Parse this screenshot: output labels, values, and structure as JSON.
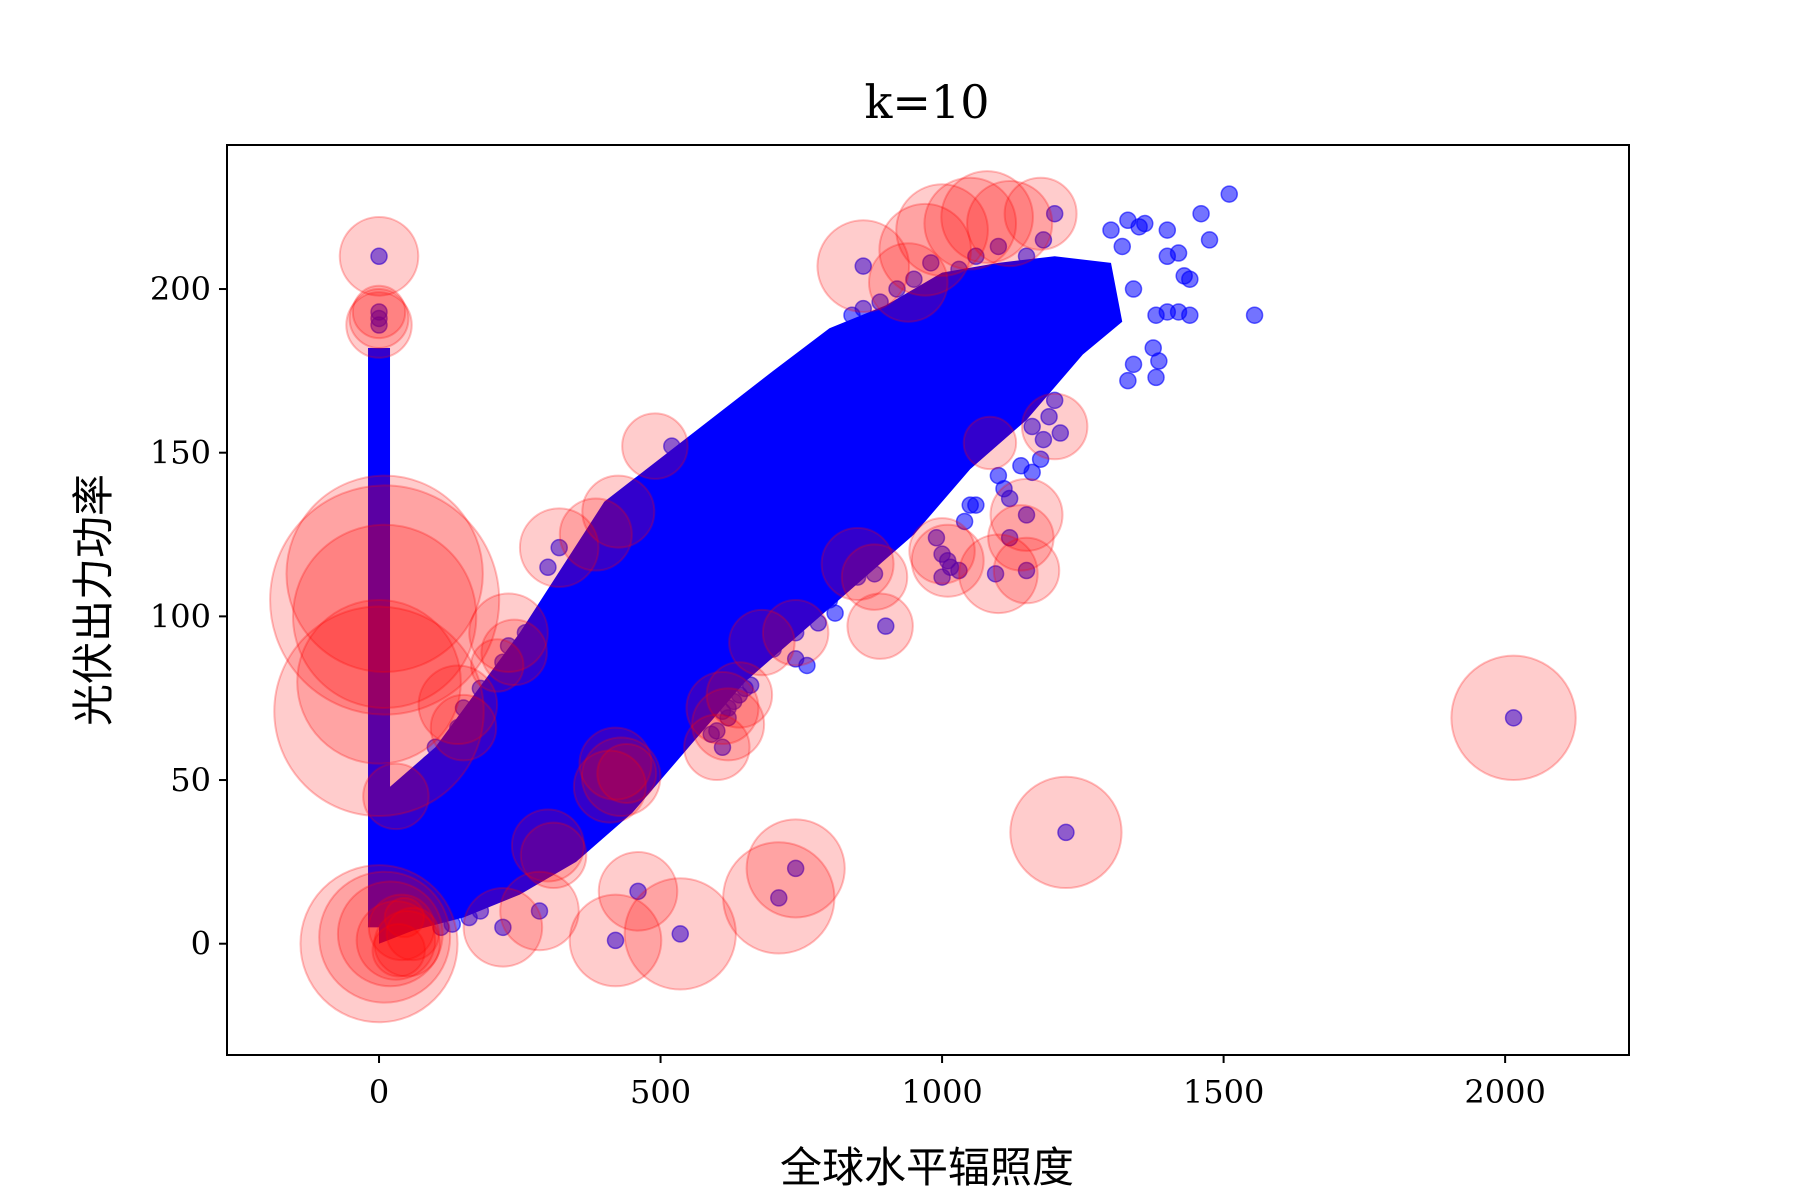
{
  "chart_data": {
    "type": "scatter",
    "title": "k=10",
    "xlabel": "全球水平辐照度",
    "ylabel": "光伏出力功率",
    "xlim": [
      -270,
      2220
    ],
    "ylim": [
      -34,
      244
    ],
    "xticks": [
      0,
      500,
      1000,
      1500,
      2000
    ],
    "yticks": [
      0,
      50,
      100,
      150,
      200
    ],
    "grid": false,
    "legend": "none",
    "colors": {
      "points": "#0000ff",
      "outlier_circles": "#ff0000"
    },
    "bands": [
      {
        "name": "dense-cluster",
        "polygon": [
          [
            0,
            0
          ],
          [
            0,
            45
          ],
          [
            100,
            60
          ],
          [
            250,
            95
          ],
          [
            400,
            135
          ],
          [
            550,
            155
          ],
          [
            700,
            175
          ],
          [
            800,
            188
          ],
          [
            900,
            195
          ],
          [
            1000,
            205
          ],
          [
            1100,
            208
          ],
          [
            1200,
            210
          ],
          [
            1300,
            208
          ],
          [
            1320,
            190
          ],
          [
            1250,
            180
          ],
          [
            1150,
            160
          ],
          [
            1050,
            145
          ],
          [
            950,
            125
          ],
          [
            850,
            110
          ],
          [
            750,
            95
          ],
          [
            650,
            80
          ],
          [
            550,
            60
          ],
          [
            450,
            40
          ],
          [
            350,
            25
          ],
          [
            250,
            15
          ],
          [
            150,
            8
          ],
          [
            60,
            4
          ]
        ]
      },
      {
        "name": "zero-irradiance-bar",
        "x": 0,
        "y_range": [
          5,
          182
        ]
      }
    ],
    "points": [
      [
        1510,
        229
      ],
      [
        1460,
        223
      ],
      [
        1475,
        215
      ],
      [
        1400,
        218
      ],
      [
        1420,
        211
      ],
      [
        1430,
        204
      ],
      [
        1440,
        203
      ],
      [
        1420,
        193
      ],
      [
        1400,
        193
      ],
      [
        1440,
        192
      ],
      [
        1380,
        192
      ],
      [
        1555,
        192
      ],
      [
        1375,
        182
      ],
      [
        1385,
        178
      ],
      [
        1340,
        177
      ],
      [
        1380,
        173
      ],
      [
        1330,
        172
      ],
      [
        1360,
        220
      ],
      [
        1330,
        221
      ],
      [
        1350,
        219
      ],
      [
        1300,
        218
      ],
      [
        1320,
        213
      ],
      [
        1400,
        210
      ],
      [
        1340,
        200
      ],
      [
        1225,
        196
      ],
      [
        1210,
        183
      ],
      [
        1195,
        176
      ],
      [
        1200,
        166
      ],
      [
        1190,
        161
      ],
      [
        1210,
        156
      ],
      [
        1160,
        158
      ],
      [
        1180,
        154
      ],
      [
        1175,
        148
      ],
      [
        1140,
        146
      ],
      [
        1100,
        143
      ],
      [
        1160,
        144
      ],
      [
        1110,
        139
      ],
      [
        1120,
        136
      ],
      [
        1050,
        134
      ],
      [
        1060,
        134
      ],
      [
        1040,
        129
      ],
      [
        990,
        124
      ],
      [
        1150,
        131
      ],
      [
        1120,
        124
      ],
      [
        1000,
        119
      ],
      [
        1010,
        117
      ],
      [
        1015,
        115
      ],
      [
        1030,
        114
      ],
      [
        1095,
        113
      ],
      [
        1150,
        114
      ],
      [
        1000,
        112
      ],
      [
        900,
        97
      ],
      [
        880,
        113
      ],
      [
        850,
        112
      ],
      [
        840,
        118
      ],
      [
        800,
        118
      ],
      [
        830,
        116
      ],
      [
        820,
        111
      ],
      [
        800,
        105
      ],
      [
        810,
        101
      ],
      [
        780,
        98
      ],
      [
        740,
        95
      ],
      [
        700,
        100
      ],
      [
        720,
        95
      ],
      [
        670,
        92
      ],
      [
        740,
        87
      ],
      [
        760,
        85
      ],
      [
        700,
        90
      ],
      [
        660,
        79
      ],
      [
        650,
        78
      ],
      [
        640,
        76
      ],
      [
        630,
        74
      ],
      [
        620,
        72
      ],
      [
        610,
        71
      ],
      [
        620,
        69
      ],
      [
        600,
        65
      ],
      [
        590,
        64
      ],
      [
        610,
        60
      ],
      [
        530,
        61
      ],
      [
        510,
        62
      ],
      [
        0,
        210
      ],
      [
        0,
        193
      ],
      [
        0,
        191
      ],
      [
        0,
        189
      ],
      [
        0,
        113
      ],
      [
        0,
        102
      ],
      [
        0,
        100
      ],
      [
        0,
        80
      ],
      [
        0,
        73
      ],
      [
        0,
        70
      ],
      [
        860,
        207
      ],
      [
        1200,
        223
      ],
      [
        1180,
        215
      ],
      [
        1150,
        210
      ],
      [
        1100,
        213
      ],
      [
        1060,
        210
      ],
      [
        1030,
        206
      ],
      [
        980,
        208
      ],
      [
        950,
        203
      ],
      [
        920,
        200
      ],
      [
        890,
        196
      ],
      [
        860,
        194
      ],
      [
        840,
        192
      ],
      [
        520,
        152
      ],
      [
        415,
        132
      ],
      [
        450,
        125
      ],
      [
        320,
        121
      ],
      [
        300,
        115
      ],
      [
        260,
        95
      ],
      [
        230,
        91
      ],
      [
        220,
        86
      ],
      [
        150,
        72
      ],
      [
        180,
        78
      ],
      [
        140,
        66
      ],
      [
        100,
        60
      ],
      [
        90,
        55
      ],
      [
        70,
        50
      ],
      [
        60,
        47
      ],
      [
        50,
        45
      ],
      [
        400,
        55
      ],
      [
        410,
        52
      ],
      [
        420,
        50
      ],
      [
        430,
        48
      ],
      [
        380,
        45
      ],
      [
        360,
        40
      ],
      [
        340,
        35
      ],
      [
        320,
        33
      ],
      [
        300,
        30
      ],
      [
        280,
        28
      ],
      [
        260,
        25
      ],
      [
        240,
        20
      ],
      [
        220,
        18
      ],
      [
        200,
        15
      ],
      [
        180,
        10
      ],
      [
        160,
        8
      ],
      [
        130,
        6
      ],
      [
        110,
        5
      ],
      [
        285,
        10
      ],
      [
        220,
        5
      ],
      [
        460,
        16
      ],
      [
        420,
        1
      ],
      [
        535,
        3
      ],
      [
        710,
        14
      ],
      [
        740,
        23
      ],
      [
        1220,
        34
      ],
      [
        2015,
        69
      ]
    ],
    "outlier_circles": [
      {
        "x": 0,
        "y": 210,
        "r": 12
      },
      {
        "x": 0,
        "y": 193,
        "r": 8
      },
      {
        "x": 0,
        "y": 191,
        "r": 9
      },
      {
        "x": 0,
        "y": 189,
        "r": 10
      },
      {
        "x": 10,
        "y": 113,
        "r": 30
      },
      {
        "x": 10,
        "y": 105,
        "r": 35
      },
      {
        "x": 10,
        "y": 100,
        "r": 28
      },
      {
        "x": 0,
        "y": 80,
        "r": 25
      },
      {
        "x": 0,
        "y": 71,
        "r": 32
      },
      {
        "x": 30,
        "y": 45,
        "r": 10
      },
      {
        "x": 140,
        "y": 73,
        "r": 12
      },
      {
        "x": 150,
        "y": 66,
        "r": 10
      },
      {
        "x": 230,
        "y": 95,
        "r": 12
      },
      {
        "x": 240,
        "y": 89,
        "r": 10
      },
      {
        "x": 210,
        "y": 85,
        "r": 8
      },
      {
        "x": 320,
        "y": 121,
        "r": 12
      },
      {
        "x": 385,
        "y": 125,
        "r": 11
      },
      {
        "x": 425,
        "y": 132,
        "r": 11
      },
      {
        "x": 490,
        "y": 152,
        "r": 10
      },
      {
        "x": 860,
        "y": 207,
        "r": 14
      },
      {
        "x": 970,
        "y": 212,
        "r": 14
      },
      {
        "x": 1000,
        "y": 218,
        "r": 14
      },
      {
        "x": 1050,
        "y": 220,
        "r": 14
      },
      {
        "x": 1080,
        "y": 222,
        "r": 14
      },
      {
        "x": 1120,
        "y": 220,
        "r": 13
      },
      {
        "x": 1175,
        "y": 223,
        "r": 11
      },
      {
        "x": 940,
        "y": 202,
        "r": 12
      },
      {
        "x": 1085,
        "y": 153,
        "r": 8
      },
      {
        "x": 1200,
        "y": 158,
        "r": 10
      },
      {
        "x": 1150,
        "y": 131,
        "r": 11
      },
      {
        "x": 1140,
        "y": 124,
        "r": 10
      },
      {
        "x": 1100,
        "y": 113,
        "r": 12
      },
      {
        "x": 1150,
        "y": 114,
        "r": 10
      },
      {
        "x": 1000,
        "y": 120,
        "r": 10
      },
      {
        "x": 1010,
        "y": 117,
        "r": 11
      },
      {
        "x": 880,
        "y": 112,
        "r": 10
      },
      {
        "x": 850,
        "y": 116,
        "r": 11
      },
      {
        "x": 890,
        "y": 97,
        "r": 10
      },
      {
        "x": 740,
        "y": 95,
        "r": 10
      },
      {
        "x": 680,
        "y": 92,
        "r": 10
      },
      {
        "x": 640,
        "y": 76,
        "r": 10
      },
      {
        "x": 610,
        "y": 72,
        "r": 11
      },
      {
        "x": 620,
        "y": 67,
        "r": 11
      },
      {
        "x": 600,
        "y": 60,
        "r": 10
      },
      {
        "x": 420,
        "y": 55,
        "r": 11
      },
      {
        "x": 430,
        "y": 51,
        "r": 12
      },
      {
        "x": 410,
        "y": 48,
        "r": 11
      },
      {
        "x": 440,
        "y": 52,
        "r": 9
      },
      {
        "x": 300,
        "y": 30,
        "r": 11
      },
      {
        "x": 310,
        "y": 27,
        "r": 10
      },
      {
        "x": 285,
        "y": 10,
        "r": 12
      },
      {
        "x": 220,
        "y": 5,
        "r": 12
      },
      {
        "x": 460,
        "y": 16,
        "r": 12
      },
      {
        "x": 420,
        "y": 1,
        "r": 14
      },
      {
        "x": 535,
        "y": 3,
        "r": 17
      },
      {
        "x": 710,
        "y": 14,
        "r": 17
      },
      {
        "x": 740,
        "y": 23,
        "r": 15
      },
      {
        "x": 1220,
        "y": 34,
        "r": 17
      },
      {
        "x": 2015,
        "y": 69,
        "r": 19
      },
      {
        "x": 0,
        "y": 0,
        "r": 24
      },
      {
        "x": 10,
        "y": 2,
        "r": 20
      },
      {
        "x": 20,
        "y": 3,
        "r": 16
      },
      {
        "x": 30,
        "y": 1,
        "r": 12
      },
      {
        "x": 40,
        "y": 5,
        "r": 10
      },
      {
        "x": 50,
        "y": 0,
        "r": 10
      },
      {
        "x": 60,
        "y": 3,
        "r": 8
      },
      {
        "x": 45,
        "y": 8,
        "r": 6
      },
      {
        "x": 35,
        "y": -2,
        "r": 8
      }
    ]
  }
}
